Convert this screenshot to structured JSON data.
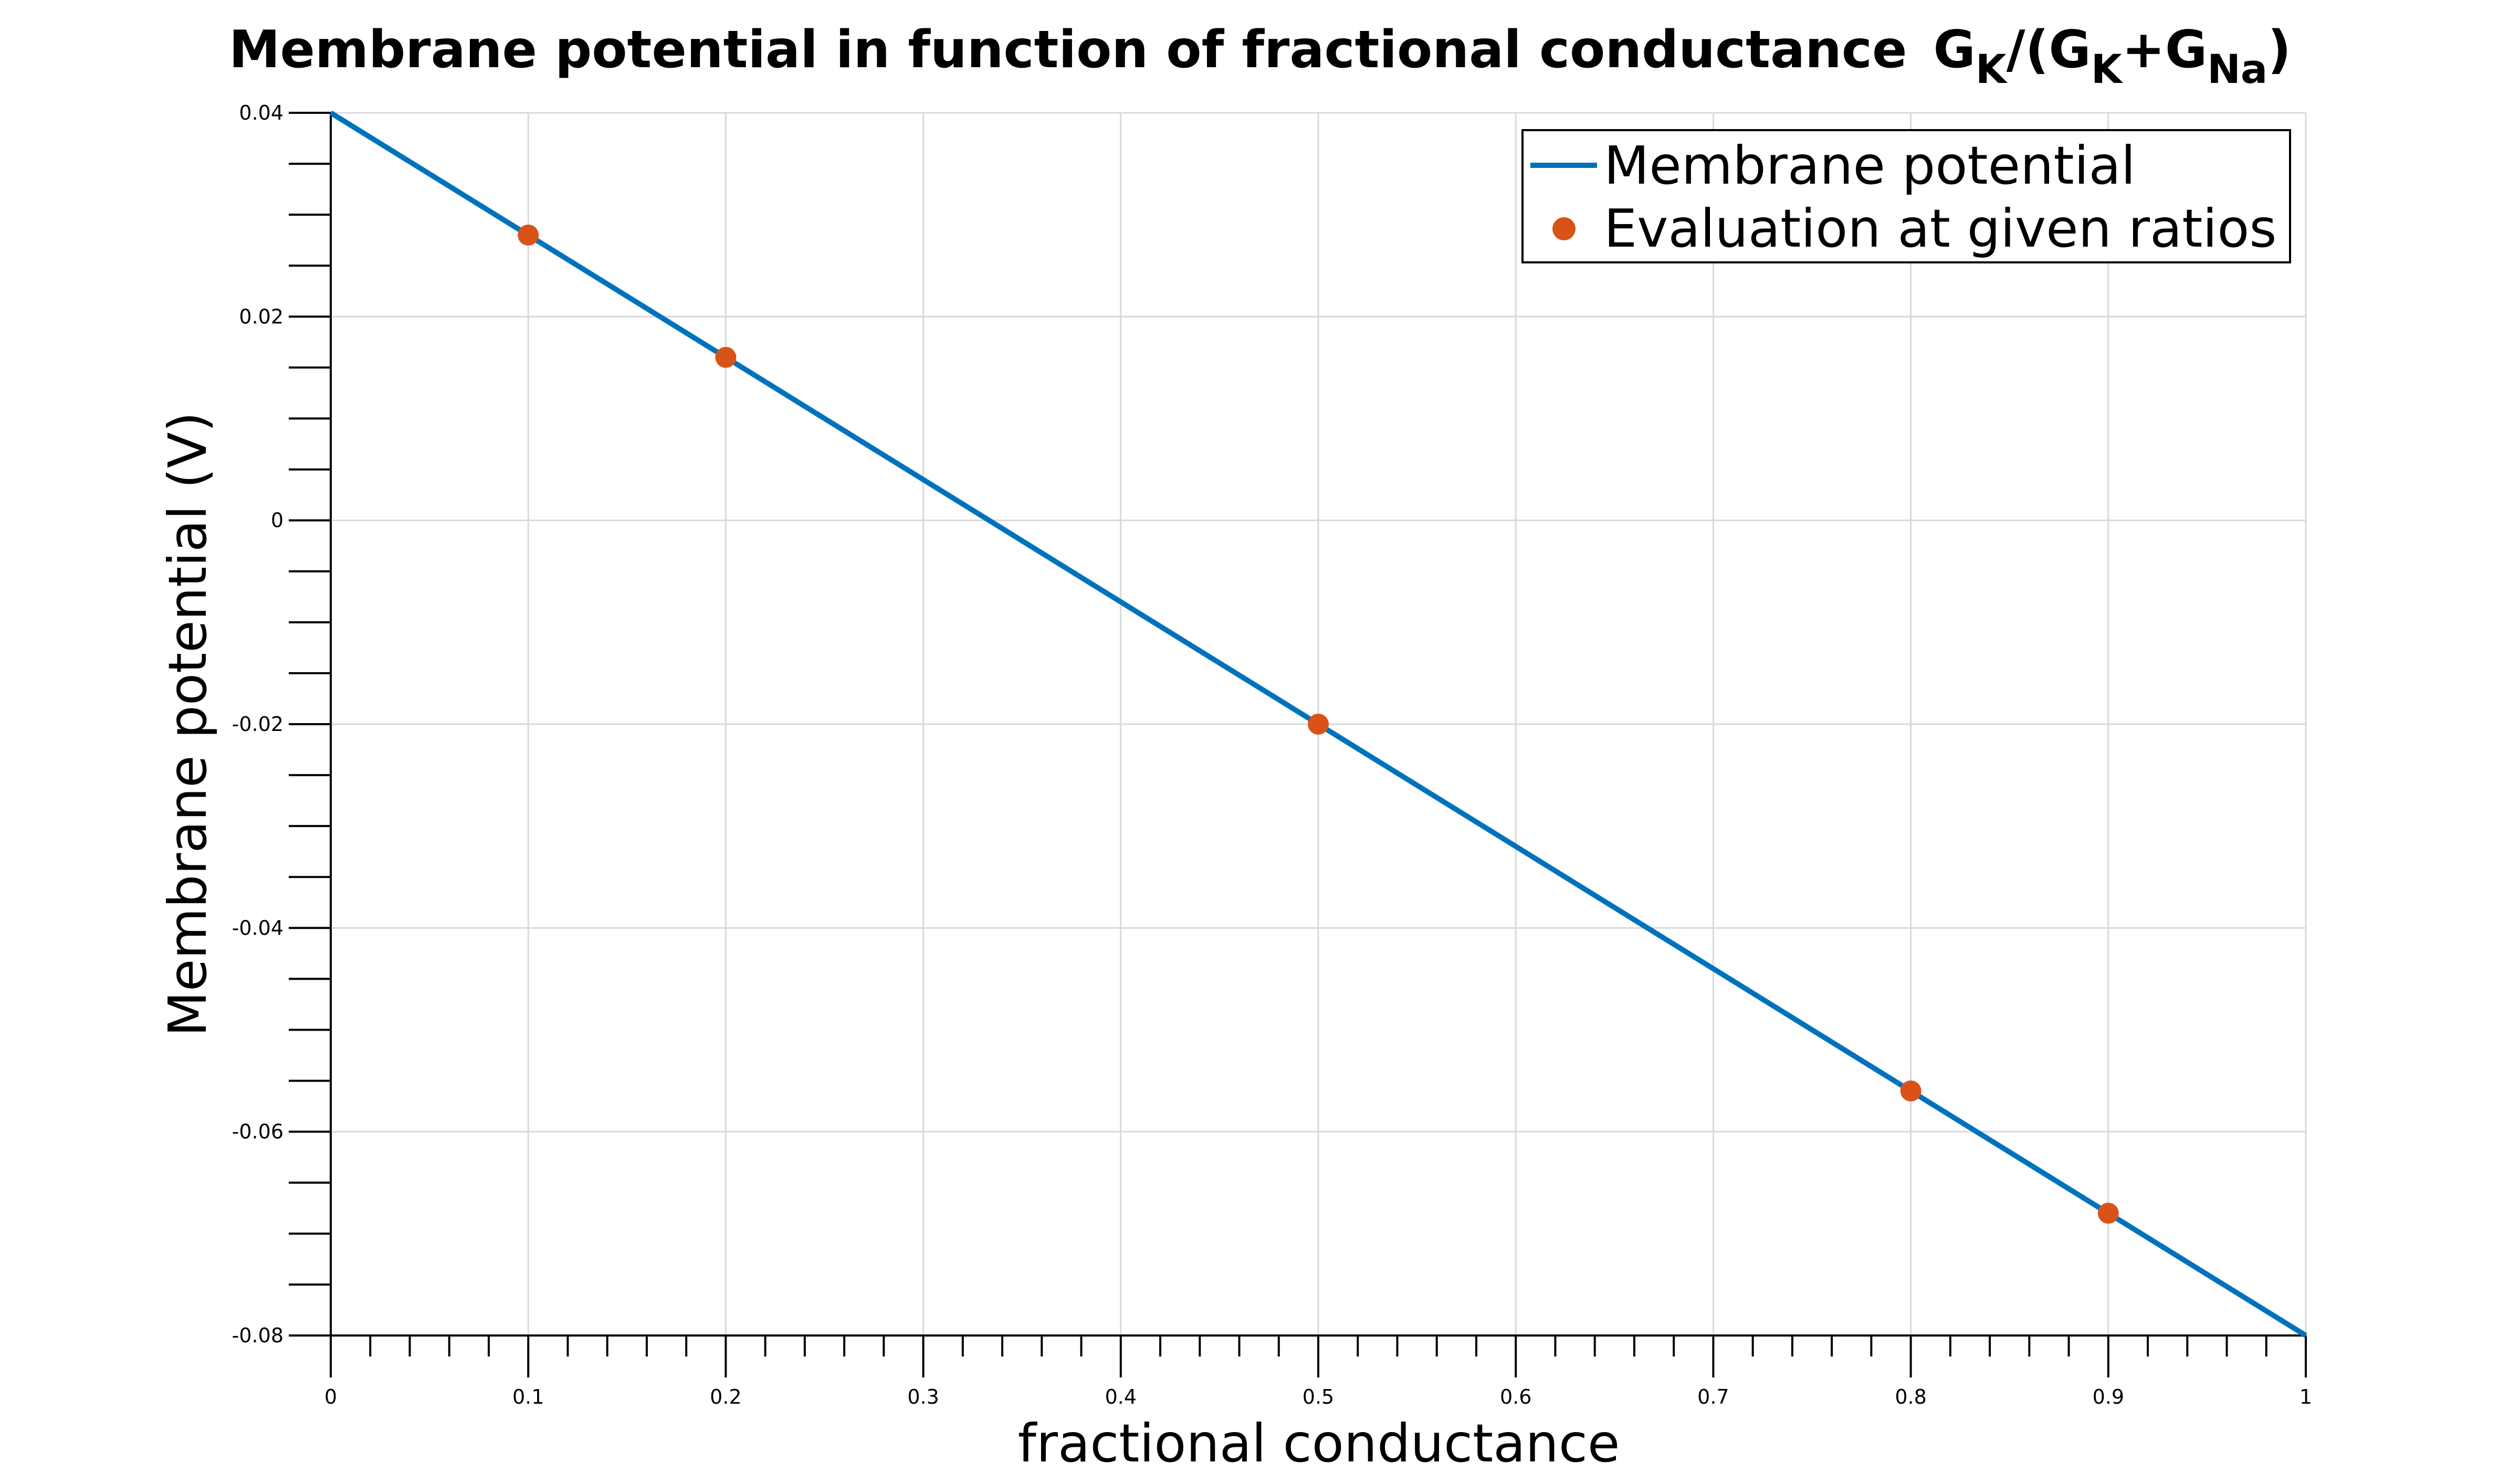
{
  "chart_data": {
    "type": "line",
    "title": {
      "main": "Membrane potential in function of fractional conductance",
      "g1": "G",
      "k1": "K",
      "mid": "/(G",
      "k2": "K",
      "plus": "+G",
      "na": "Na",
      "close": ")"
    },
    "xlabel": "fractional conductance",
    "ylabel": "Membrane potential (V)",
    "xlim": [
      0,
      1
    ],
    "ylim": [
      -0.08,
      0.04
    ],
    "x_ticks": [
      "0",
      "0.1",
      "0.2",
      "0.3",
      "0.4",
      "0.5",
      "0.6",
      "0.7",
      "0.8",
      "0.9",
      "1"
    ],
    "y_ticks": [
      "0.04",
      "0.02",
      "0",
      "-0.02",
      "-0.04",
      "-0.06",
      "-0.08"
    ],
    "grid": true,
    "legend_position": "top-right",
    "series": [
      {
        "name": "Membrane potential",
        "kind": "line",
        "color": "#0072BD",
        "x": [
          0,
          1
        ],
        "y": [
          0.04,
          -0.08
        ]
      },
      {
        "name": "Evaluation at given ratios",
        "kind": "scatter",
        "color": "#D95319",
        "x": [
          0.1,
          0.2,
          0.5,
          0.8,
          0.9
        ],
        "y": [
          0.028,
          0.016,
          -0.02,
          -0.056,
          -0.068
        ]
      }
    ]
  }
}
